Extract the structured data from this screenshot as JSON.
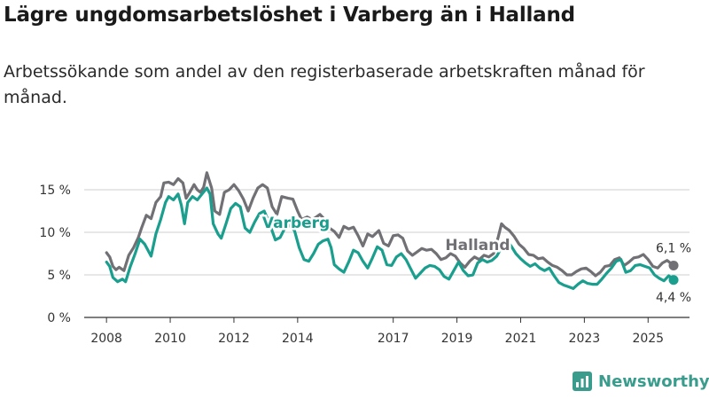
{
  "header": {
    "title": "Lägre ungdomsarbetslöshet i Varberg än i Halland",
    "subtitle": "Arbetssökande som andel av den registerbaserade arbetskraften månad för månad."
  },
  "brand": {
    "name": "Newsworthy",
    "icon": "newsworthy-logo-icon",
    "color": "#3a9c8c"
  },
  "chart_data": {
    "type": "line",
    "title": "Lägre ungdomsarbetslöshet i Varberg än i Halland",
    "subtitle": "Arbetssökande som andel av den registerbaserade arbetskraften månad för månad.",
    "xlabel": "",
    "ylabel": "",
    "x_range": [
      2007.3,
      2026.3
    ],
    "ylim": [
      0,
      17.5
    ],
    "y_ticks": [
      0,
      5,
      10,
      15
    ],
    "y_tick_labels": [
      "0 %",
      "5 %",
      "10 %",
      "15 %"
    ],
    "x_ticks": [
      2008,
      2010,
      2012,
      2014,
      2017,
      2019,
      2021,
      2023,
      2025
    ],
    "x_tick_labels": [
      "2008",
      "2010",
      "2012",
      "2014",
      "2017",
      "2019",
      "2021",
      "2023",
      "2025"
    ],
    "grid": true,
    "series": [
      {
        "name": "Halland",
        "color": "#707075",
        "points": [
          [
            2008.0,
            7.6
          ],
          [
            2008.1,
            7.1
          ],
          [
            2008.2,
            6.0
          ],
          [
            2008.3,
            5.6
          ],
          [
            2008.4,
            5.9
          ],
          [
            2008.55,
            5.5
          ],
          [
            2008.7,
            7.3
          ],
          [
            2008.85,
            8.2
          ],
          [
            2009.0,
            9.4
          ],
          [
            2009.1,
            10.5
          ],
          [
            2009.25,
            12.0
          ],
          [
            2009.4,
            11.6
          ],
          [
            2009.55,
            13.5
          ],
          [
            2009.7,
            14.2
          ],
          [
            2009.8,
            15.8
          ],
          [
            2009.95,
            15.9
          ],
          [
            2010.1,
            15.6
          ],
          [
            2010.25,
            16.3
          ],
          [
            2010.4,
            15.8
          ],
          [
            2010.5,
            14.0
          ],
          [
            2010.6,
            14.6
          ],
          [
            2010.75,
            15.6
          ],
          [
            2010.85,
            15.0
          ],
          [
            2010.95,
            14.7
          ],
          [
            2011.05,
            15.3
          ],
          [
            2011.15,
            17.0
          ],
          [
            2011.3,
            15.2
          ],
          [
            2011.4,
            12.5
          ],
          [
            2011.55,
            12.1
          ],
          [
            2011.7,
            14.7
          ],
          [
            2011.85,
            15.0
          ],
          [
            2012.0,
            15.6
          ],
          [
            2012.15,
            14.9
          ],
          [
            2012.3,
            13.9
          ],
          [
            2012.45,
            12.5
          ],
          [
            2012.6,
            14.0
          ],
          [
            2012.75,
            15.2
          ],
          [
            2012.9,
            15.6
          ],
          [
            2013.05,
            15.2
          ],
          [
            2013.2,
            13.0
          ],
          [
            2013.35,
            12.1
          ],
          [
            2013.5,
            14.2
          ],
          [
            2013.7,
            14.0
          ],
          [
            2013.85,
            13.9
          ],
          [
            2014.0,
            12.5
          ],
          [
            2014.12,
            11.5
          ],
          [
            2014.3,
            11.8
          ],
          [
            2014.45,
            11.5
          ],
          [
            2014.55,
            11.7
          ],
          [
            2014.7,
            12.1
          ],
          [
            2014.85,
            11.5
          ],
          [
            2015.0,
            10.5
          ],
          [
            2015.15,
            10.1
          ],
          [
            2015.3,
            9.4
          ],
          [
            2015.45,
            10.7
          ],
          [
            2015.6,
            10.4
          ],
          [
            2015.75,
            10.6
          ],
          [
            2015.9,
            9.6
          ],
          [
            2016.05,
            8.4
          ],
          [
            2016.2,
            9.8
          ],
          [
            2016.35,
            9.5
          ],
          [
            2016.55,
            10.2
          ],
          [
            2016.7,
            8.7
          ],
          [
            2016.85,
            8.4
          ],
          [
            2017.0,
            9.6
          ],
          [
            2017.15,
            9.7
          ],
          [
            2017.3,
            9.3
          ],
          [
            2017.45,
            7.8
          ],
          [
            2017.6,
            7.3
          ],
          [
            2017.75,
            7.7
          ],
          [
            2017.9,
            8.1
          ],
          [
            2018.05,
            7.9
          ],
          [
            2018.2,
            8.0
          ],
          [
            2018.35,
            7.5
          ],
          [
            2018.5,
            6.8
          ],
          [
            2018.65,
            7.0
          ],
          [
            2018.8,
            7.5
          ],
          [
            2018.95,
            7.2
          ],
          [
            2019.1,
            6.4
          ],
          [
            2019.25,
            5.9
          ],
          [
            2019.4,
            6.6
          ],
          [
            2019.55,
            7.1
          ],
          [
            2019.7,
            6.8
          ],
          [
            2019.85,
            7.3
          ],
          [
            2020.0,
            7.1
          ],
          [
            2020.15,
            7.5
          ],
          [
            2020.3,
            9.5
          ],
          [
            2020.4,
            11.0
          ],
          [
            2020.5,
            10.6
          ],
          [
            2020.65,
            10.2
          ],
          [
            2020.8,
            9.5
          ],
          [
            2020.95,
            8.6
          ],
          [
            2021.1,
            8.1
          ],
          [
            2021.25,
            7.4
          ],
          [
            2021.4,
            7.3
          ],
          [
            2021.55,
            6.9
          ],
          [
            2021.7,
            7.0
          ],
          [
            2021.85,
            6.5
          ],
          [
            2022.0,
            6.1
          ],
          [
            2022.15,
            5.9
          ],
          [
            2022.3,
            5.5
          ],
          [
            2022.45,
            5.0
          ],
          [
            2022.6,
            5.0
          ],
          [
            2022.75,
            5.4
          ],
          [
            2022.9,
            5.7
          ],
          [
            2023.05,
            5.8
          ],
          [
            2023.2,
            5.4
          ],
          [
            2023.35,
            4.9
          ],
          [
            2023.5,
            5.3
          ],
          [
            2023.65,
            6.0
          ],
          [
            2023.8,
            6.1
          ],
          [
            2023.95,
            6.8
          ],
          [
            2024.1,
            7.0
          ],
          [
            2024.25,
            6.1
          ],
          [
            2024.4,
            6.5
          ],
          [
            2024.55,
            7.0
          ],
          [
            2024.7,
            7.1
          ],
          [
            2024.85,
            7.4
          ],
          [
            2025.0,
            6.8
          ],
          [
            2025.15,
            6.0
          ],
          [
            2025.3,
            5.8
          ],
          [
            2025.45,
            6.4
          ],
          [
            2025.6,
            6.7
          ],
          [
            2025.8,
            6.1
          ]
        ],
        "last_label": "6,1 %",
        "inline_label": "Halland",
        "inline_label_at": [
          2019.65,
          7.9
        ]
      },
      {
        "name": "Varberg",
        "color": "#1a9e8e",
        "points": [
          [
            2008.0,
            6.5
          ],
          [
            2008.1,
            6.0
          ],
          [
            2008.2,
            4.7
          ],
          [
            2008.35,
            4.2
          ],
          [
            2008.5,
            4.5
          ],
          [
            2008.6,
            4.2
          ],
          [
            2008.75,
            6.0
          ],
          [
            2008.9,
            7.5
          ],
          [
            2009.05,
            9.2
          ],
          [
            2009.2,
            8.6
          ],
          [
            2009.4,
            7.2
          ],
          [
            2009.55,
            9.8
          ],
          [
            2009.7,
            11.5
          ],
          [
            2009.85,
            13.5
          ],
          [
            2009.95,
            14.2
          ],
          [
            2010.1,
            13.8
          ],
          [
            2010.25,
            14.5
          ],
          [
            2010.35,
            13.2
          ],
          [
            2010.45,
            11.0
          ],
          [
            2010.55,
            13.5
          ],
          [
            2010.7,
            14.2
          ],
          [
            2010.85,
            13.8
          ],
          [
            2011.0,
            14.5
          ],
          [
            2011.15,
            15.2
          ],
          [
            2011.25,
            14.5
          ],
          [
            2011.35,
            11.0
          ],
          [
            2011.5,
            9.8
          ],
          [
            2011.6,
            9.3
          ],
          [
            2011.75,
            11.0
          ],
          [
            2011.9,
            12.8
          ],
          [
            2012.05,
            13.4
          ],
          [
            2012.2,
            13.0
          ],
          [
            2012.35,
            10.5
          ],
          [
            2012.5,
            10.0
          ],
          [
            2012.65,
            11.2
          ],
          [
            2012.8,
            12.2
          ],
          [
            2012.95,
            12.5
          ],
          [
            2013.1,
            11.2
          ],
          [
            2013.3,
            9.1
          ],
          [
            2013.45,
            9.4
          ],
          [
            2013.6,
            10.5
          ],
          [
            2013.75,
            10.8
          ],
          [
            2013.9,
            10.2
          ],
          [
            2014.05,
            8.2
          ],
          [
            2014.2,
            6.8
          ],
          [
            2014.35,
            6.6
          ],
          [
            2014.5,
            7.5
          ],
          [
            2014.65,
            8.6
          ],
          [
            2014.8,
            9.0
          ],
          [
            2014.95,
            9.2
          ],
          [
            2015.05,
            8.2
          ],
          [
            2015.15,
            6.2
          ],
          [
            2015.3,
            5.7
          ],
          [
            2015.45,
            5.3
          ],
          [
            2015.6,
            6.5
          ],
          [
            2015.75,
            7.9
          ],
          [
            2015.9,
            7.6
          ],
          [
            2016.05,
            6.6
          ],
          [
            2016.2,
            5.8
          ],
          [
            2016.35,
            7.0
          ],
          [
            2016.5,
            8.3
          ],
          [
            2016.65,
            7.9
          ],
          [
            2016.8,
            6.2
          ],
          [
            2016.95,
            6.1
          ],
          [
            2017.1,
            7.1
          ],
          [
            2017.25,
            7.5
          ],
          [
            2017.4,
            6.8
          ],
          [
            2017.55,
            5.7
          ],
          [
            2017.7,
            4.6
          ],
          [
            2017.85,
            5.2
          ],
          [
            2018.0,
            5.8
          ],
          [
            2018.15,
            6.1
          ],
          [
            2018.3,
            6.0
          ],
          [
            2018.45,
            5.6
          ],
          [
            2018.6,
            4.8
          ],
          [
            2018.75,
            4.5
          ],
          [
            2018.9,
            5.5
          ],
          [
            2019.05,
            6.5
          ],
          [
            2019.2,
            5.5
          ],
          [
            2019.35,
            4.9
          ],
          [
            2019.5,
            5.0
          ],
          [
            2019.65,
            6.4
          ],
          [
            2019.8,
            6.8
          ],
          [
            2019.95,
            6.5
          ],
          [
            2020.1,
            6.7
          ],
          [
            2020.25,
            7.2
          ],
          [
            2020.4,
            8.2
          ],
          [
            2020.55,
            9.2
          ],
          [
            2020.7,
            8.4
          ],
          [
            2020.85,
            7.5
          ],
          [
            2021.0,
            6.9
          ],
          [
            2021.15,
            6.4
          ],
          [
            2021.3,
            6.0
          ],
          [
            2021.45,
            6.3
          ],
          [
            2021.6,
            5.8
          ],
          [
            2021.75,
            5.5
          ],
          [
            2021.9,
            5.8
          ],
          [
            2022.05,
            4.9
          ],
          [
            2022.2,
            4.1
          ],
          [
            2022.35,
            3.8
          ],
          [
            2022.5,
            3.6
          ],
          [
            2022.65,
            3.4
          ],
          [
            2022.8,
            3.9
          ],
          [
            2022.95,
            4.3
          ],
          [
            2023.1,
            4.0
          ],
          [
            2023.25,
            3.9
          ],
          [
            2023.4,
            3.9
          ],
          [
            2023.55,
            4.5
          ],
          [
            2023.7,
            5.2
          ],
          [
            2023.85,
            5.8
          ],
          [
            2024.0,
            6.6
          ],
          [
            2024.15,
            6.8
          ],
          [
            2024.3,
            5.3
          ],
          [
            2024.45,
            5.5
          ],
          [
            2024.6,
            6.1
          ],
          [
            2024.75,
            6.2
          ],
          [
            2024.9,
            6.0
          ],
          [
            2025.05,
            5.8
          ],
          [
            2025.2,
            5.0
          ],
          [
            2025.35,
            4.6
          ],
          [
            2025.5,
            4.3
          ],
          [
            2025.65,
            4.9
          ],
          [
            2025.8,
            4.4
          ]
        ],
        "last_label": "4,4 %",
        "inline_label": "Varberg",
        "inline_label_at": [
          2013.95,
          10.5
        ]
      }
    ]
  }
}
